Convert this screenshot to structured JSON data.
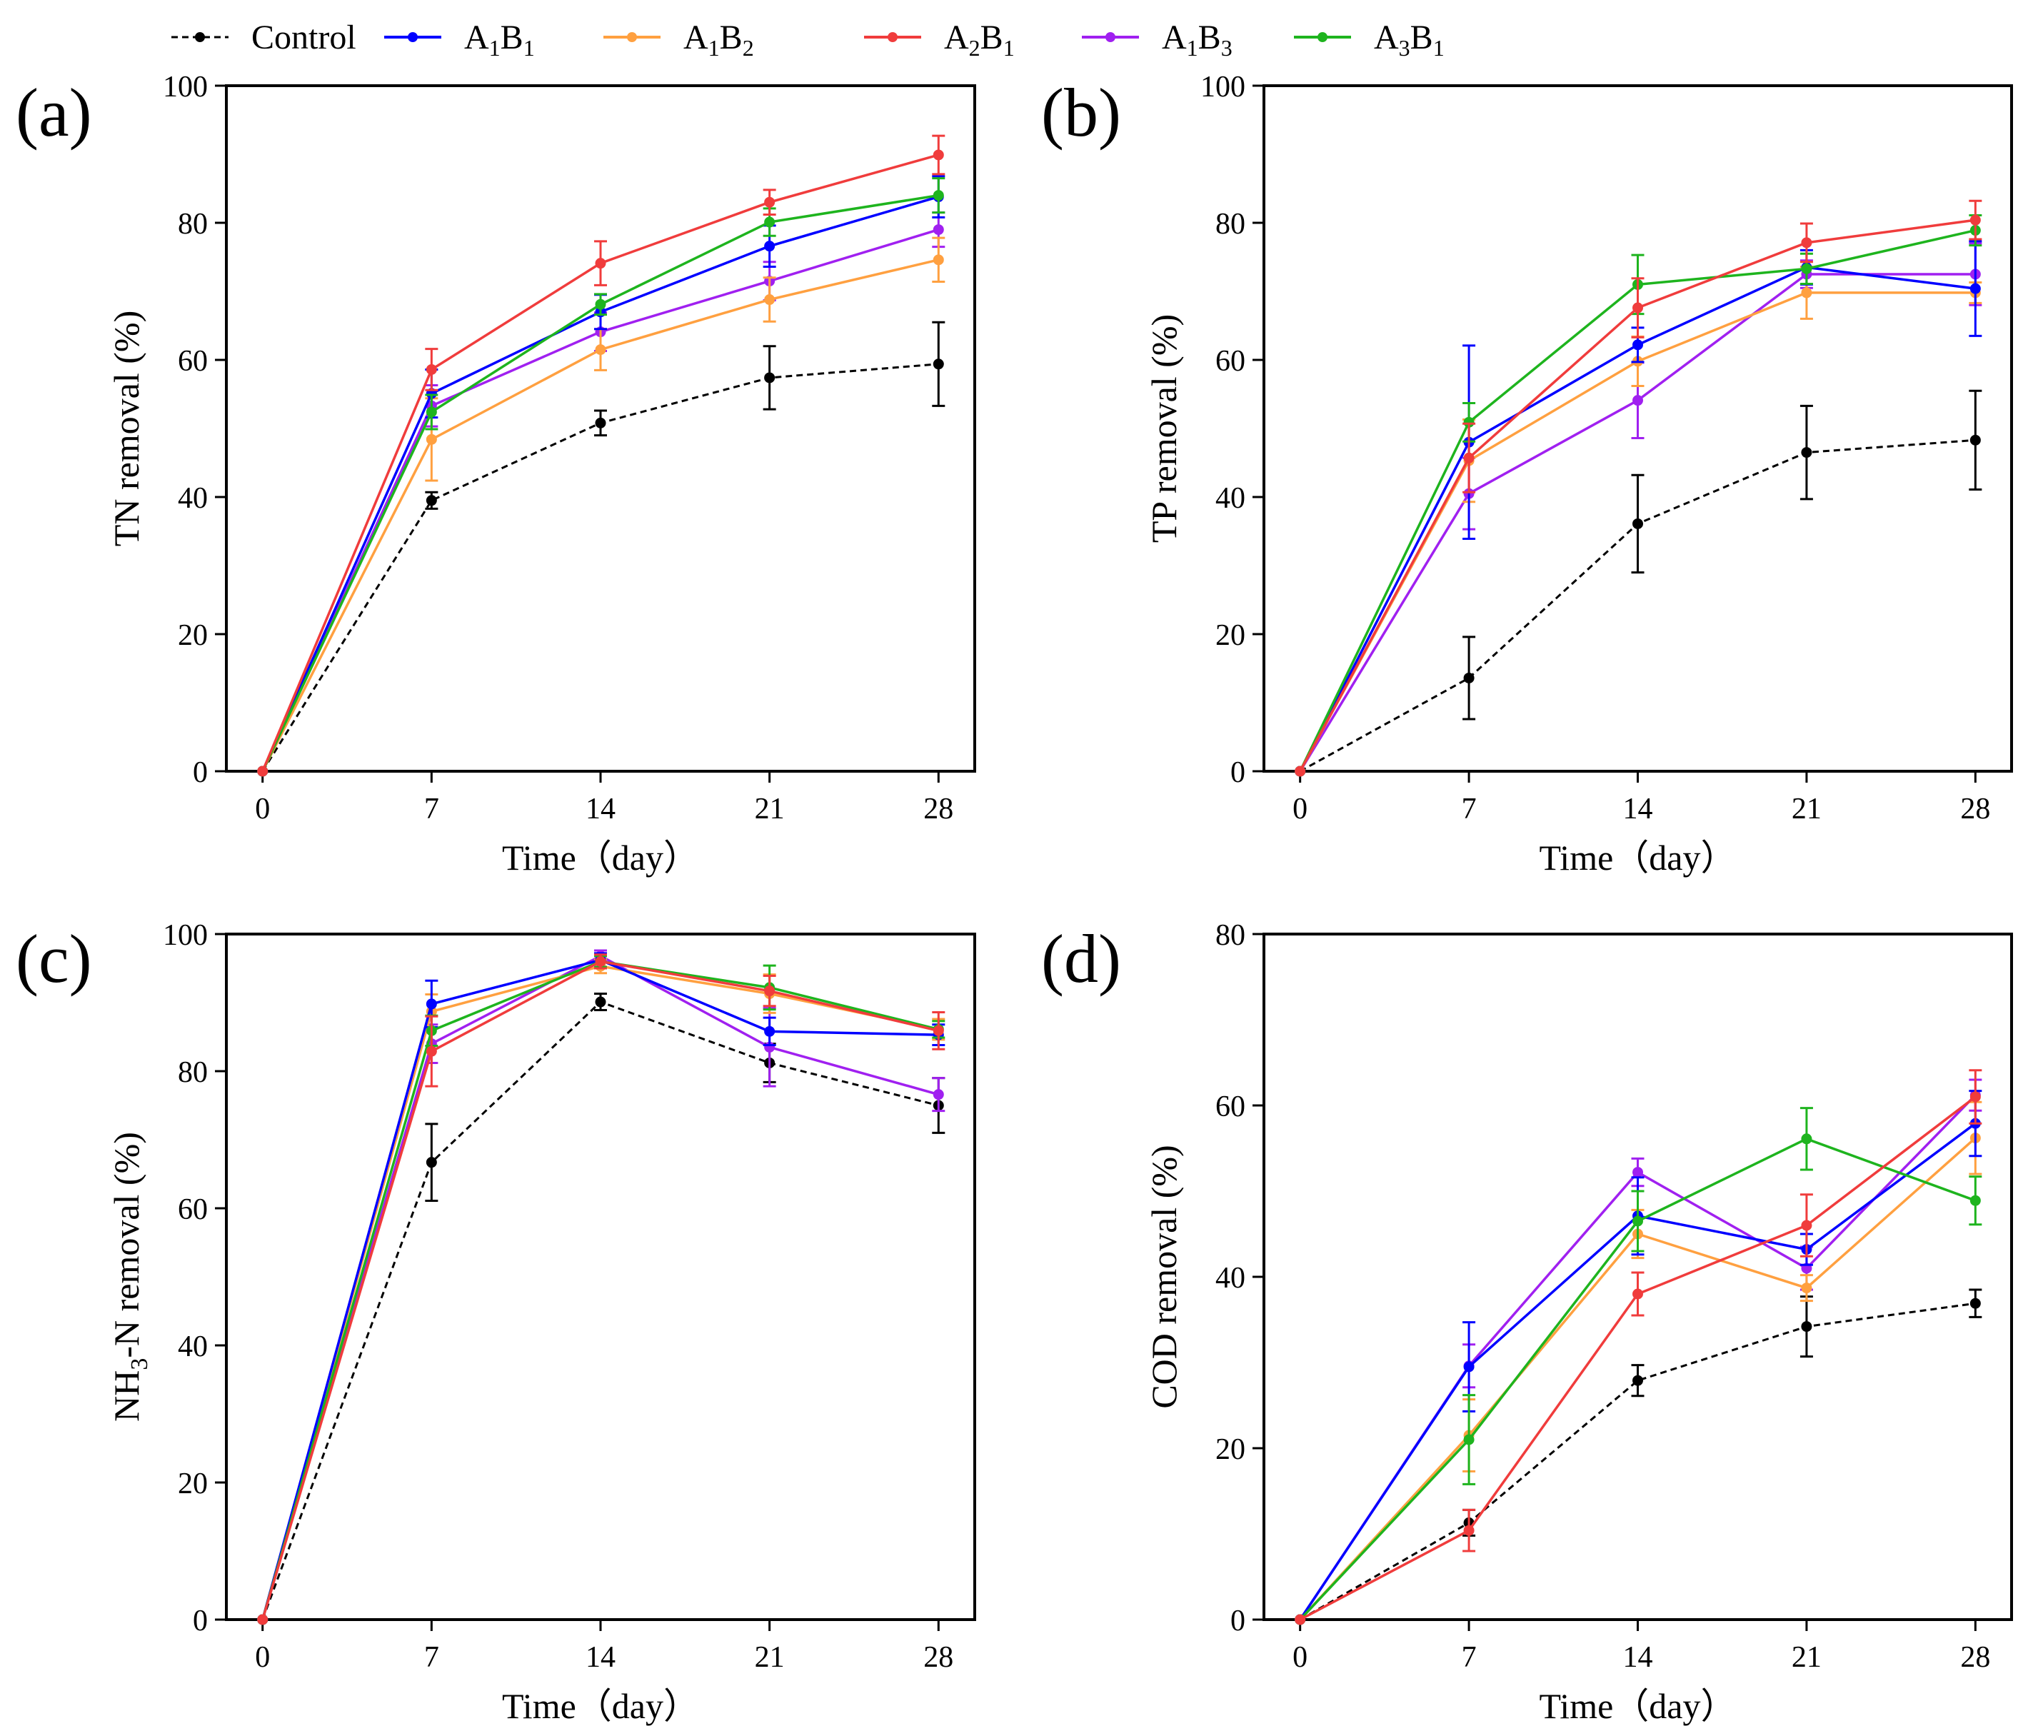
{
  "legend": {
    "items": [
      {
        "key": "control",
        "name": "Control",
        "color": "#000000",
        "dashed": true
      },
      {
        "key": "a1b1",
        "base": "A",
        "sub1": "1",
        "mid": "B",
        "sub2": "1",
        "color": "#0000FF"
      },
      {
        "key": "a1b2",
        "base": "A",
        "sub1": "1",
        "mid": "B",
        "sub2": "2",
        "color": "#FFA040"
      },
      {
        "key": "a2b1",
        "base": "A",
        "sub1": "2",
        "mid": "B",
        "sub2": "1",
        "color": "#F03C3C"
      },
      {
        "key": "a1b3",
        "base": "A",
        "sub1": "1",
        "mid": "B",
        "sub2": "3",
        "color": "#A020F0"
      },
      {
        "key": "a3b1",
        "base": "A",
        "sub1": "3",
        "mid": "B",
        "sub2": "1",
        "color": "#1EB41E"
      }
    ]
  },
  "chart_data": [
    {
      "type": "line",
      "panel_label": "(a)",
      "xlabel": "Time（day）",
      "ylabel": "TN removal (%)",
      "x": [
        0,
        7,
        14,
        21,
        28
      ],
      "xticks": [
        "0",
        "7",
        "14",
        "21",
        "28"
      ],
      "ylim": [
        0,
        100
      ],
      "yticks": [
        "0",
        "20",
        "40",
        "60",
        "80",
        "100"
      ],
      "series": [
        {
          "key": "control",
          "values": [
            0,
            39.5,
            50.8,
            57.4,
            59.4
          ],
          "errors": [
            0,
            1.2,
            1.8,
            4.6,
            6.1
          ]
        },
        {
          "key": "a1b1",
          "values": [
            0,
            55.1,
            67.0,
            76.6,
            83.8
          ],
          "errors": [
            0,
            3.5,
            2.5,
            3.0,
            3.0
          ]
        },
        {
          "key": "a1b2",
          "values": [
            0,
            48.4,
            61.5,
            68.8,
            74.6
          ],
          "errors": [
            0,
            6.0,
            3.0,
            3.2,
            3.2
          ]
        },
        {
          "key": "a2b1",
          "values": [
            0,
            58.6,
            74.1,
            83.0,
            89.9
          ],
          "errors": [
            0,
            3.0,
            3.2,
            1.8,
            2.8
          ]
        },
        {
          "key": "a1b3",
          "values": [
            0,
            53.3,
            64.1,
            71.5,
            79.0
          ],
          "errors": [
            0,
            3.0,
            2.8,
            2.8,
            2.5
          ]
        },
        {
          "key": "a3b1",
          "values": [
            0,
            52.4,
            68.1,
            80.1,
            84.0
          ],
          "errors": [
            0,
            2.5,
            1.5,
            2.0,
            2.5
          ]
        }
      ]
    },
    {
      "type": "line",
      "panel_label": "(b)",
      "xlabel": "Time（day）",
      "ylabel": "TP removal (%)",
      "x": [
        0,
        7,
        14,
        21,
        28
      ],
      "xticks": [
        "0",
        "7",
        "14",
        "21",
        "28"
      ],
      "ylim": [
        0,
        100
      ],
      "yticks": [
        "0",
        "20",
        "40",
        "60",
        "80",
        "100"
      ],
      "series": [
        {
          "key": "control",
          "values": [
            0,
            13.6,
            36.1,
            46.5,
            48.3
          ],
          "errors": [
            0,
            6.0,
            7.1,
            6.8,
            7.2
          ]
        },
        {
          "key": "a1b1",
          "values": [
            0,
            48.0,
            62.2,
            73.5,
            70.4
          ],
          "errors": [
            0,
            14.1,
            2.5,
            2.5,
            6.9
          ]
        },
        {
          "key": "a1b2",
          "values": [
            0,
            45.3,
            59.8,
            69.8,
            69.8
          ],
          "errors": [
            0,
            6.0,
            3.6,
            3.8,
            1.5
          ]
        },
        {
          "key": "a2b1",
          "values": [
            0,
            45.7,
            67.6,
            77.1,
            80.4
          ],
          "errors": [
            0,
            5.0,
            4.3,
            2.8,
            2.8
          ]
        },
        {
          "key": "a1b3",
          "values": [
            0,
            40.5,
            54.1,
            72.5,
            72.5
          ],
          "errors": [
            0,
            5.2,
            5.5,
            2.0,
            4.5
          ]
        },
        {
          "key": "a3b1",
          "values": [
            0,
            50.9,
            71.0,
            73.3,
            78.9
          ],
          "errors": [
            0,
            2.8,
            4.3,
            2.2,
            2.2
          ]
        }
      ]
    },
    {
      "type": "line",
      "panel_label": "(c)",
      "xlabel": "Time（day）",
      "ylabel_base": "NH",
      "ylabel_sub": "3",
      "ylabel_rest": "-N removal (%)",
      "x": [
        0,
        7,
        14,
        21,
        28
      ],
      "xticks": [
        "0",
        "7",
        "14",
        "21",
        "28"
      ],
      "ylim": [
        0,
        100
      ],
      "yticks": [
        "0",
        "20",
        "40",
        "60",
        "80",
        "100"
      ],
      "series": [
        {
          "key": "control",
          "values": [
            0,
            66.7,
            90.1,
            81.2,
            75.0
          ],
          "errors": [
            0,
            5.6,
            1.2,
            2.8,
            4.0
          ]
        },
        {
          "key": "a1b1",
          "values": [
            0,
            89.8,
            96.2,
            85.8,
            85.3
          ],
          "errors": [
            0,
            3.4,
            1.0,
            2.0,
            1.5
          ]
        },
        {
          "key": "a1b2",
          "values": [
            0,
            88.7,
            95.3,
            91.3,
            86.1
          ],
          "errors": [
            0,
            2.5,
            1.0,
            2.8,
            1.5
          ]
        },
        {
          "key": "a2b1",
          "values": [
            0,
            82.9,
            96.0,
            91.7,
            85.9
          ],
          "errors": [
            0,
            5.1,
            1.0,
            2.2,
            2.7
          ]
        },
        {
          "key": "a1b3",
          "values": [
            0,
            84.0,
            96.8,
            83.5,
            76.6
          ],
          "errors": [
            0,
            2.8,
            0.8,
            5.7,
            2.4
          ]
        },
        {
          "key": "a3b1",
          "values": [
            0,
            85.9,
            96.0,
            92.2,
            86.1
          ],
          "errors": [
            0,
            2.2,
            0.8,
            3.2,
            1.2
          ]
        }
      ]
    },
    {
      "type": "line",
      "panel_label": "(d)",
      "xlabel": "Time（day）",
      "ylabel": "COD removal (%)",
      "x": [
        0,
        7,
        14,
        21,
        28
      ],
      "xticks": [
        "0",
        "7",
        "14",
        "21",
        "28"
      ],
      "ylim": [
        0,
        80
      ],
      "yticks": [
        "0",
        "20",
        "40",
        "60",
        "80"
      ],
      "series": [
        {
          "key": "control",
          "values": [
            0,
            11.3,
            27.9,
            34.2,
            36.9
          ],
          "errors": [
            0,
            1.5,
            1.8,
            3.5,
            1.6
          ]
        },
        {
          "key": "a1b1",
          "values": [
            0,
            29.5,
            47.1,
            43.2,
            57.9
          ],
          "errors": [
            0,
            5.2,
            4.5,
            1.8,
            3.8
          ]
        },
        {
          "key": "a1b2",
          "values": [
            0,
            21.5,
            45.0,
            38.7,
            56.2
          ],
          "errors": [
            0,
            4.2,
            2.8,
            1.5,
            4.2
          ]
        },
        {
          "key": "a2b1",
          "values": [
            0,
            10.4,
            38.0,
            46.0,
            61.0
          ],
          "errors": [
            0,
            2.4,
            2.5,
            3.6,
            3.1
          ]
        },
        {
          "key": "a1b3",
          "values": [
            0,
            29.6,
            52.2,
            41.0,
            61.2
          ],
          "errors": [
            0,
            2.5,
            1.6,
            2.5,
            1.8
          ]
        },
        {
          "key": "a3b1",
          "values": [
            0,
            21.0,
            46.5,
            56.1,
            48.9
          ],
          "errors": [
            0,
            5.2,
            3.5,
            3.6,
            2.8
          ]
        }
      ]
    }
  ]
}
